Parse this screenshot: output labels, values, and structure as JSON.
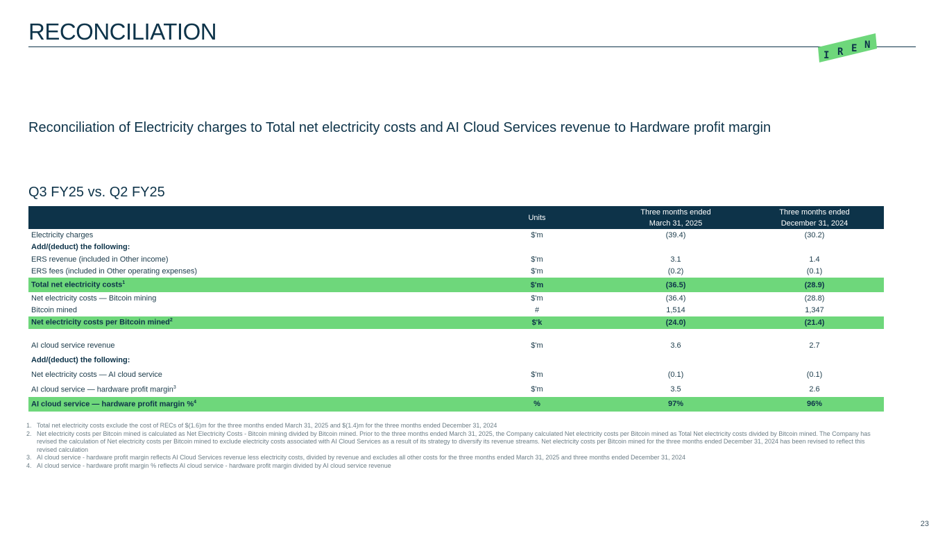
{
  "header": {
    "title": "RECONCILIATION",
    "logo_letters": [
      "I",
      "R",
      "E",
      "N"
    ]
  },
  "subtitle": "Reconciliation of Electricity charges to Total net electricity costs and AI Cloud Services revenue to Hardware profit margin",
  "section_label": "Q3 FY25 vs. Q2 FY25",
  "table": {
    "columns": {
      "units": "Units",
      "col1": [
        "Three months ended",
        "March 31, 2025"
      ],
      "col2": [
        "Three months ended",
        "December 31, 2024"
      ]
    },
    "rows": [
      {
        "label": "Electricity charges",
        "units": "$'m",
        "v1": "(39.4)",
        "v2": "(30.2)"
      },
      {
        "label": "Add/(deduct) the following:",
        "units": "",
        "v1": "",
        "v2": ""
      },
      {
        "label": "ERS revenue (included in Other income)",
        "units": "$'m",
        "v1": "3.1",
        "v2": "1.4"
      },
      {
        "label": "ERS fees (included in Other operating expenses)",
        "units": "$'m",
        "v1": "(0.2)",
        "v2": "(0.1)"
      },
      {
        "label": "Total net electricity costs",
        "sup": "1",
        "units": "$'m",
        "v1": "(36.5)",
        "v2": "(28.9)"
      },
      {
        "label": "Net electricity costs — Bitcoin mining",
        "units": "$'m",
        "v1": "(36.4)",
        "v2": "(28.8)"
      },
      {
        "label": "Bitcoin mined",
        "units": "#",
        "v1": "1,514",
        "v2": "1,347"
      },
      {
        "label": "Net electricity costs per Bitcoin mined",
        "sup": "2",
        "units": "$'k",
        "v1": "(24.0)",
        "v2": "(21.4)"
      },
      {
        "label": "AI cloud service revenue",
        "units": "$'m",
        "v1": "3.6",
        "v2": "2.7"
      },
      {
        "label": "Add/(deduct) the following:",
        "units": "",
        "v1": "",
        "v2": ""
      },
      {
        "label": "Net electricity costs — AI cloud service",
        "units": "$'m",
        "v1": "(0.1)",
        "v2": "(0.1)"
      },
      {
        "label": "AI cloud service — hardware profit margin",
        "sup": "3",
        "units": "$'m",
        "v1": "3.5",
        "v2": "2.6"
      },
      {
        "label": "AI cloud service — hardware profit margin %",
        "sup": "4",
        "units": "%",
        "v1": "97%",
        "v2": "96%"
      }
    ]
  },
  "footnotes": [
    {
      "num": "1.",
      "text": "Total net electricity costs exclude the cost of RECs of $(1.6)m for the three months ended March 31, 2025 and $(1.4)m for the three months ended December 31, 2024"
    },
    {
      "num": "2.",
      "text": "Net electricity costs per Bitcoin mined is calculated as Net Electricity Costs - Bitcoin mining divided by Bitcoin mined. Prior to the three months ended March 31, 2025, the Company calculated Net electricity costs per Bitcoin mined as Total Net electricity costs divided by Bitcoin mined. The Company has revised the calculation of Net electricity costs per Bitcoin mined to exclude electricity costs associated with AI Cloud Services as a result of its strategy to diversify its revenue streams. Net electricity costs per Bitcoin mined for the three months ended December 31, 2024 has been revised to reflect this revised calculation"
    },
    {
      "num": "3.",
      "text": "AI cloud service - hardware profit margin reflects AI Cloud Services revenue less electricity costs, divided by revenue and excludes all other costs for the three months ended March 31, 2025 and three months ended December 31, 2024"
    },
    {
      "num": "4.",
      "text": "AI cloud service - hardware profit margin % reflects AI cloud service - hardware profit margin divided by AI cloud service revenue"
    }
  ],
  "page_number": "23",
  "colors": {
    "navy": "#0d3349",
    "highlight_green": "#6ed77b",
    "logo_green": "#6ed77b"
  }
}
